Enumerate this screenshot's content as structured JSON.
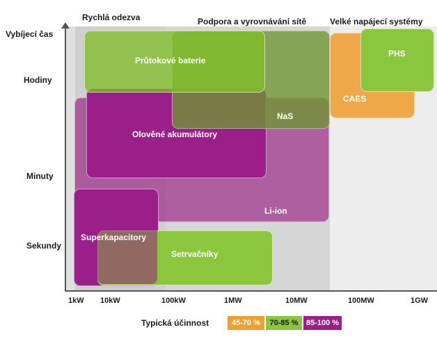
{
  "regions": {
    "fast_response": "Rychlá odezva",
    "grid_support": "Podpora a vyrovnávání sítě",
    "large_power": "Velké napájecí systémy"
  },
  "y_axis": {
    "title": "Vybíjecí čas",
    "ticks": [
      "Hodiny",
      "Minuty",
      "Sekundy"
    ]
  },
  "x_axis": {
    "ticks": [
      "1kW",
      "10kW",
      "100kW",
      "1MW",
      "10MW",
      "100MW",
      "1GW"
    ]
  },
  "technologies": {
    "flow_batteries": "Průtokové baterie",
    "lead_acid": "Olověné akumulátory",
    "nas": "NaS",
    "li_ion": "Li-ion",
    "supercapacitors": "Superkapacitory",
    "flywheels": "Setrvačníky",
    "caes": "CAES",
    "phs": "PHS"
  },
  "legend": {
    "title": "Typická účinnost",
    "items": [
      {
        "label": "45-70 %",
        "color": "#f0a030"
      },
      {
        "label": "70-85 %",
        "color": "#8cc63f"
      },
      {
        "label": "85-100 %",
        "color": "#9b1f88"
      }
    ]
  }
}
